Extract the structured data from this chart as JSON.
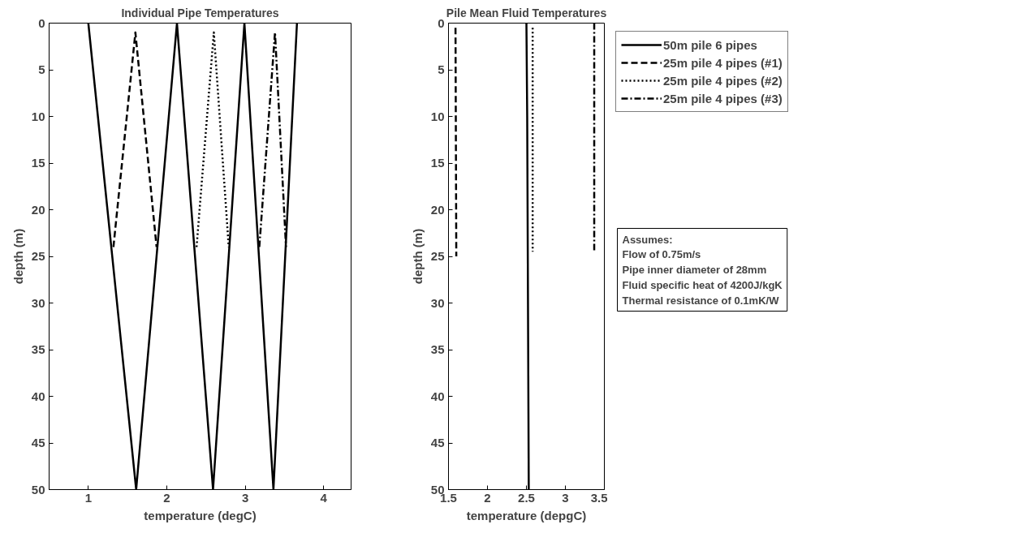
{
  "chart_data": [
    {
      "type": "line",
      "title": "Individual Pipe Temperatures",
      "xlabel": "temperature (degC)",
      "ylabel": "depth (m)",
      "xlim": [
        0.5,
        4.35
      ],
      "xticks": [
        1,
        2,
        3,
        4
      ],
      "ylim": [
        50,
        0
      ],
      "yticks": [
        0,
        5,
        10,
        15,
        20,
        25,
        30,
        35,
        40,
        45,
        50
      ],
      "grid": false,
      "legend": false,
      "marker": "none",
      "series": [
        {
          "color": "#000000",
          "line_style": "solid",
          "x": [
            1.0,
            1.61,
            2.13,
            2.59,
            2.99,
            3.36,
            3.66
          ],
          "values": [
            0,
            50,
            0,
            50,
            0,
            50,
            0
          ]
        },
        {
          "color": "#000000",
          "line_style": "dashed",
          "x": [
            1.32,
            1.6,
            1.87
          ],
          "values": [
            24,
            1,
            24
          ]
        },
        {
          "color": "#000000",
          "line_style": "dotted",
          "x": [
            2.38,
            2.6,
            2.79
          ],
          "values": [
            24,
            1,
            24
          ]
        },
        {
          "color": "#000000",
          "line_style": "dashdot",
          "x": [
            3.18,
            3.38,
            3.52
          ],
          "values": [
            24,
            1,
            24
          ]
        }
      ]
    },
    {
      "type": "line",
      "title": "Pile Mean Fluid Temperatures",
      "xlabel": "temperature (depgC)",
      "ylabel": "depth (m)",
      "xlim": [
        1.5,
        3.5
      ],
      "xticks": [
        1.5,
        2,
        2.5,
        3,
        3.5
      ],
      "ylim": [
        50,
        0
      ],
      "yticks": [
        0,
        5,
        10,
        15,
        20,
        25,
        30,
        35,
        40,
        45,
        50
      ],
      "grid": false,
      "legend": "right",
      "marker": "none",
      "annotations": [
        "Assumes:",
        "Flow of 0.75m/s",
        "Pipe inner diameter of 28mm",
        "Fluid specific heat of 4200J/kgK",
        "Thermal resistance of 0.1mK/W"
      ],
      "series": [
        {
          "name": "50m pile 6 pipes",
          "color": "#000000",
          "line_style": "solid",
          "x": [
            2.5,
            2.51,
            2.52,
            2.53
          ],
          "values": [
            0,
            10,
            30,
            50
          ]
        },
        {
          "name": "25m pile 4 pipes (#1)",
          "color": "#000000",
          "line_style": "dashed",
          "x": [
            1.59,
            1.6
          ],
          "values": [
            0.5,
            25
          ]
        },
        {
          "name": "25m pile 4 pipes (#2)",
          "color": "#000000",
          "line_style": "dotted",
          "x": [
            2.58,
            2.58
          ],
          "values": [
            0.5,
            24.5
          ]
        },
        {
          "name": "25m pile 4 pipes (#3)",
          "color": "#000000",
          "line_style": "dashdot",
          "x": [
            3.37,
            3.37
          ],
          "values": [
            0,
            24.5
          ]
        }
      ]
    }
  ]
}
